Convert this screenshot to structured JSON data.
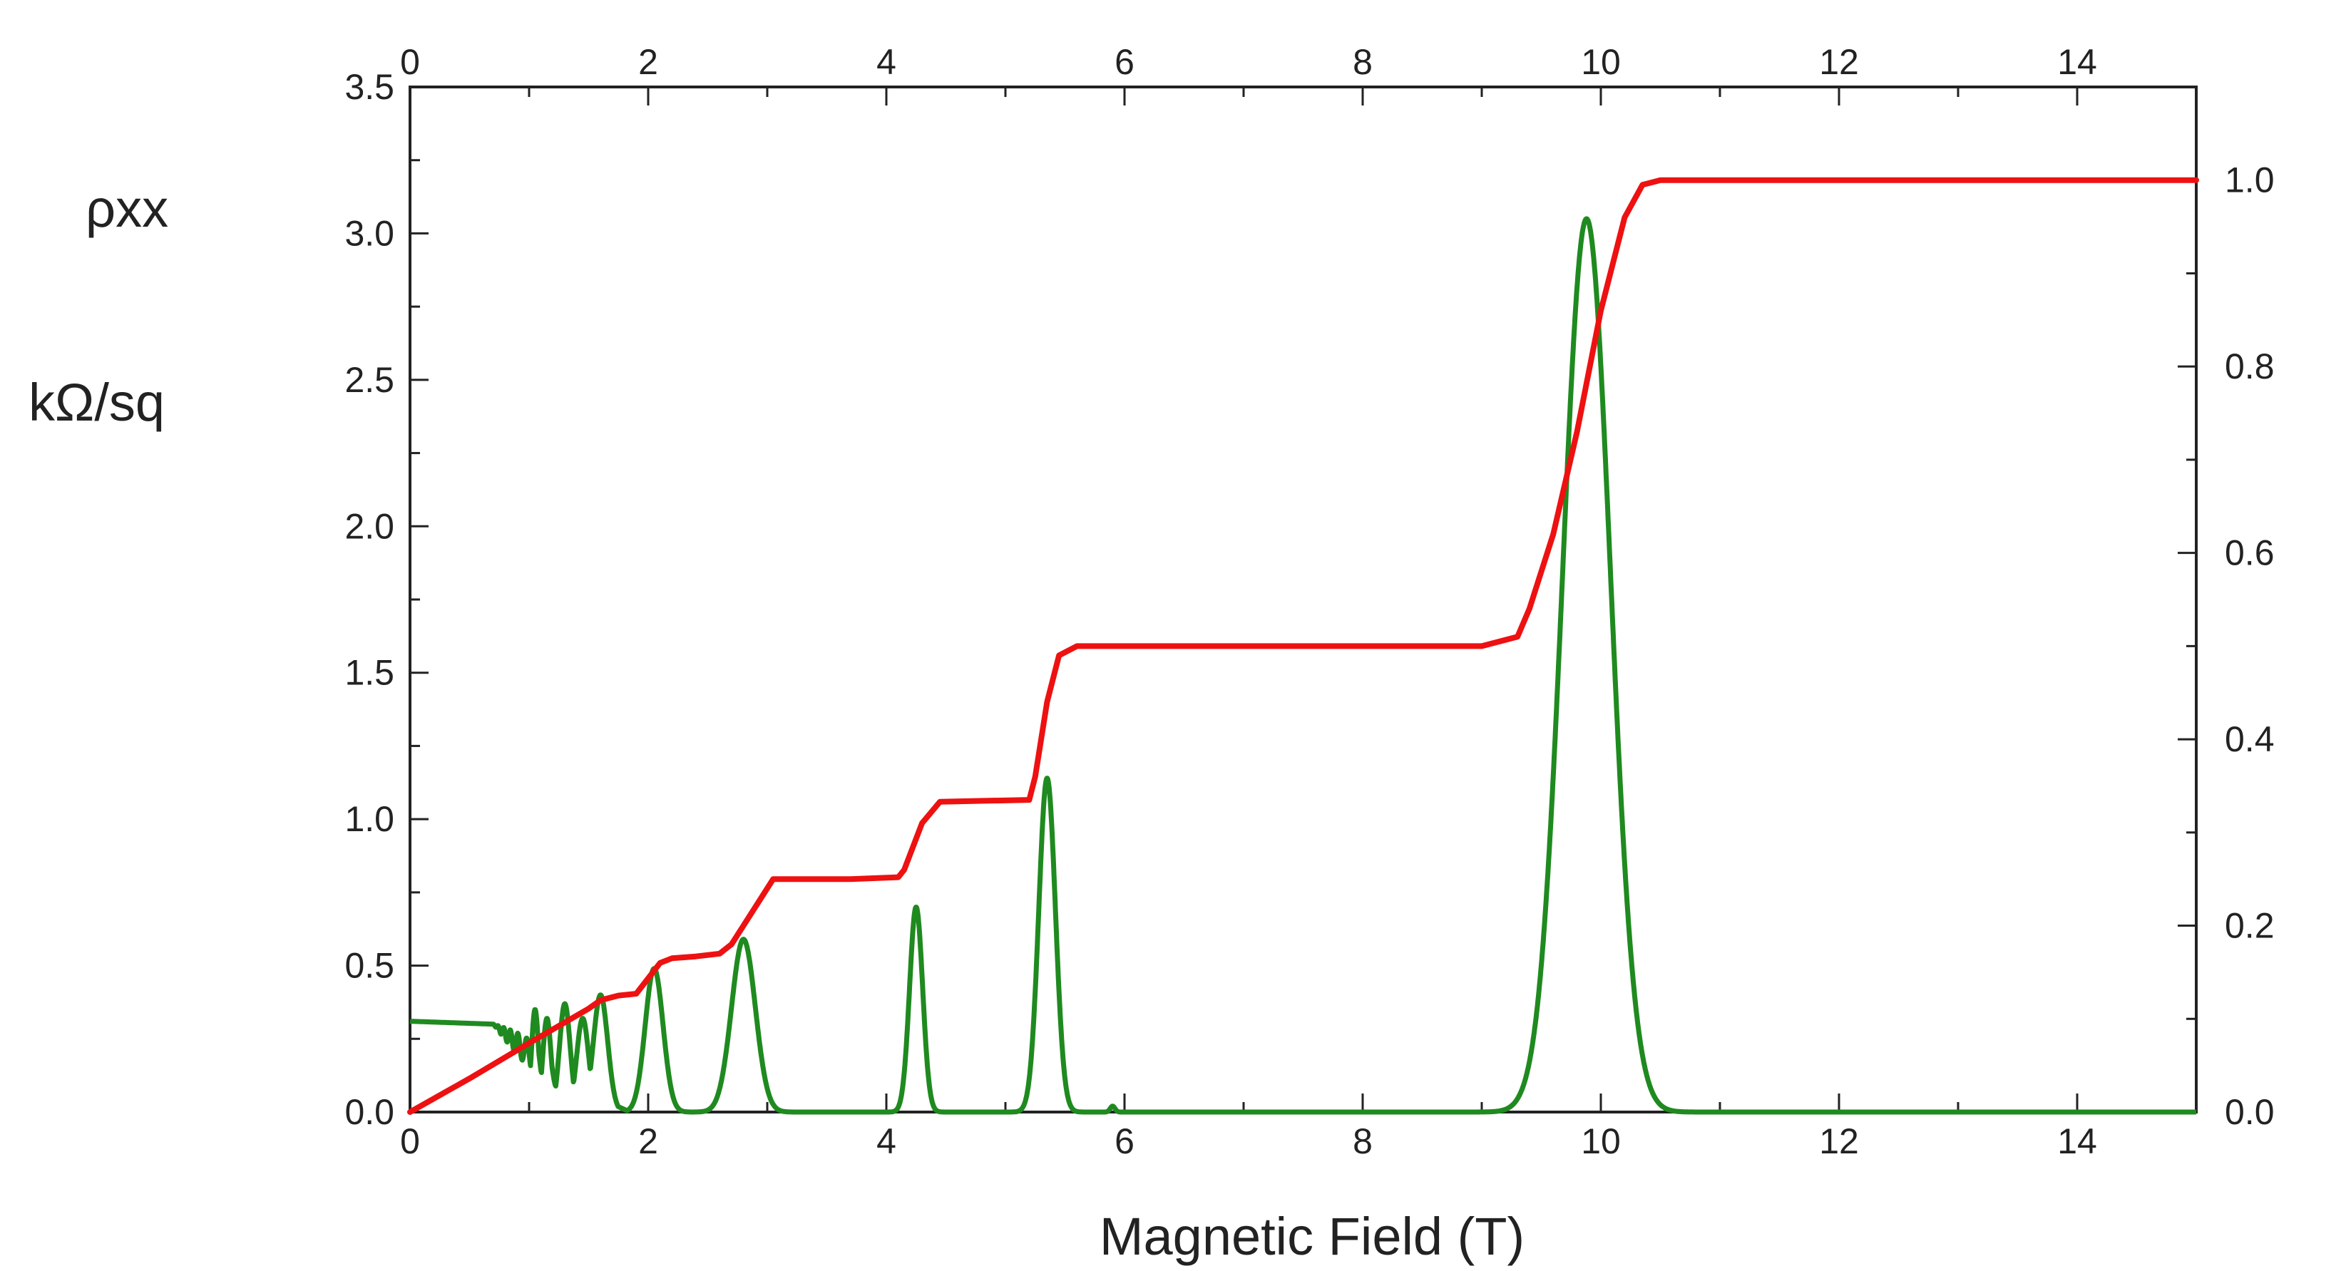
{
  "chart_data": {
    "type": "line",
    "title": "",
    "xlabel": "Magnetic Field  (T)",
    "ylabel_left_lines": [
      "ρxx",
      "kΩ/sq"
    ],
    "ylabel_right": "",
    "xlim": [
      0,
      15
    ],
    "ylim_left": [
      0,
      3.5
    ],
    "ylim_right": [
      0,
      1.1
    ],
    "x_ticks": [
      0,
      2,
      4,
      6,
      8,
      10,
      12,
      14
    ],
    "x_tick_labels": [
      "0",
      "2",
      "4",
      "6",
      "8",
      "10",
      "12",
      "14"
    ],
    "y_left_ticks": [
      0,
      0.5,
      1.0,
      1.5,
      2.0,
      2.5,
      3.0,
      3.5
    ],
    "y_left_tick_labels": [
      "0.0",
      "0.5",
      "1.0",
      "1.5",
      "2.0",
      "2.5",
      "3.0",
      "3.5"
    ],
    "y_right_ticks": [
      0,
      0.2,
      0.4,
      0.6,
      0.8,
      1.0
    ],
    "y_right_tick_labels": [
      "0.0",
      "0.2",
      "0.4",
      "0.6",
      "0.8",
      "1.0"
    ],
    "grid": false,
    "legend": "none",
    "series": [
      {
        "color": "#ee1111",
        "axis": "right",
        "x": [
          0,
          0.5,
          1.0,
          1.5,
          1.6,
          1.75,
          1.9,
          2.1,
          2.2,
          2.4,
          2.6,
          2.7,
          2.9,
          3.05,
          3.3,
          3.7,
          4.1,
          4.15,
          4.3,
          4.45,
          5.2,
          5.25,
          5.35,
          5.45,
          5.6,
          6.0,
          7.0,
          8.0,
          9.0,
          9.3,
          9.4,
          9.6,
          9.8,
          10.0,
          10.2,
          10.35,
          10.5,
          11.0,
          12.0,
          13.0,
          14.0,
          15.0
        ],
        "y": [
          0.0,
          0.036,
          0.074,
          0.111,
          0.12,
          0.125,
          0.127,
          0.16,
          0.165,
          0.167,
          0.17,
          0.18,
          0.22,
          0.25,
          0.25,
          0.25,
          0.252,
          0.26,
          0.31,
          0.333,
          0.335,
          0.36,
          0.44,
          0.49,
          0.5,
          0.5,
          0.5,
          0.5,
          0.5,
          0.51,
          0.54,
          0.62,
          0.73,
          0.86,
          0.96,
          0.995,
          1.0,
          1.0,
          1.0,
          1.0,
          1.0,
          1.0
        ]
      },
      {
        "color": "#1f8a1f",
        "axis": "left",
        "baseline": [
          [
            0,
            0.31
          ],
          [
            0.7,
            0.3
          ],
          [
            1.3,
            0.1
          ],
          [
            1.85,
            0.0
          ]
        ],
        "oscillation": {
          "x_start": 0.7,
          "x_end": 1.45,
          "amplitude_max": 0.05
        },
        "peaks": [
          {
            "x": 1.05,
            "y": 0.35,
            "width": 0.03
          },
          {
            "x": 1.15,
            "y": 0.32,
            "width": 0.035
          },
          {
            "x": 1.3,
            "y": 0.37,
            "width": 0.045
          },
          {
            "x": 1.45,
            "y": 0.32,
            "width": 0.05
          },
          {
            "x": 1.6,
            "y": 0.4,
            "width": 0.06
          },
          {
            "x": 2.05,
            "y": 0.49,
            "width": 0.075
          },
          {
            "x": 2.8,
            "y": 0.59,
            "width": 0.1
          },
          {
            "x": 4.25,
            "y": 0.7,
            "width": 0.055
          },
          {
            "x": 5.35,
            "y": 1.14,
            "width": 0.07
          },
          {
            "x": 5.9,
            "y": 0.02,
            "width": 0.02
          },
          {
            "x": 9.88,
            "y": 3.05,
            "width": 0.2
          }
        ]
      }
    ]
  }
}
